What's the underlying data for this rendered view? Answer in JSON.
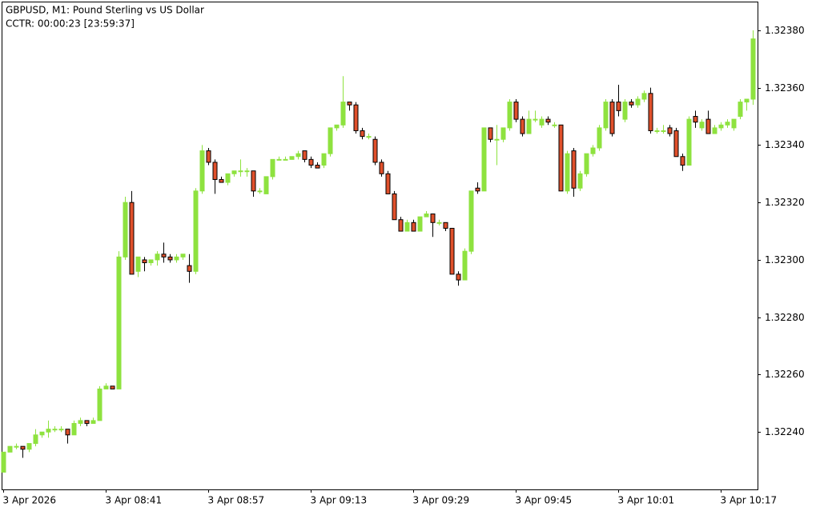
{
  "chart_data": {
    "type": "candlestick",
    "title": "GBPUSD, M1:  Pound Sterling vs US Dollar",
    "subtitle": "CCTR: 00:00:23 [23:59:37]",
    "up_color": "#8ee23f",
    "down_color": "#e0502b",
    "categories": [
      "3 Apr 2026",
      null,
      null,
      null,
      null,
      null,
      null,
      null,
      null,
      null,
      null,
      null,
      null,
      null,
      null,
      null,
      "3 Apr 08:41",
      null,
      null,
      null,
      null,
      null,
      null,
      null,
      null,
      null,
      null,
      null,
      null,
      null,
      null,
      null,
      "3 Apr 08:57",
      null,
      null,
      null,
      null,
      null,
      null,
      null,
      null,
      null,
      null,
      null,
      null,
      null,
      null,
      null,
      "3 Apr 09:13",
      null,
      null,
      null,
      null,
      null,
      null,
      null,
      null,
      null,
      null,
      null,
      null,
      null,
      null,
      null,
      "3 Apr 09:29",
      null,
      null,
      null,
      null,
      null,
      null,
      null,
      null,
      null,
      null,
      null,
      null,
      null,
      null,
      null,
      "3 Apr 09:45",
      null,
      null,
      null,
      null,
      null,
      null,
      null,
      null,
      null,
      null,
      null,
      null,
      null,
      null,
      null,
      "3 Apr 10:01",
      null,
      null,
      null,
      null,
      null,
      null,
      null,
      null,
      null,
      null,
      null,
      null,
      null,
      null,
      null,
      "3 Apr 10:17",
      null,
      null,
      null,
      null,
      null
    ],
    "open": [
      1.32226,
      1.32233,
      1.32235,
      1.32235,
      1.32234,
      1.32236,
      1.32239,
      1.3224,
      1.32241,
      1.32241,
      1.32241,
      1.32239,
      1.32243,
      1.32244,
      1.32243,
      1.32244,
      1.32255,
      1.32256,
      1.32255,
      1.32301,
      1.3232,
      1.32296,
      1.323,
      1.32299,
      1.323,
      1.32302,
      1.32301,
      1.323,
      1.32301,
      1.32298,
      1.32296,
      1.32324,
      1.32338,
      1.32334,
      1.32328,
      1.32327,
      1.3233,
      1.32331,
      1.32331,
      1.32331,
      1.32324,
      1.32323,
      1.32329,
      1.32335,
      1.32335,
      1.32335,
      1.32336,
      1.32338,
      1.32335,
      1.32333,
      1.32333,
      1.32337,
      1.32346,
      1.32347,
      1.32355,
      1.32354,
      1.32345,
      1.32343,
      1.32342,
      1.32334,
      1.3233,
      1.32323,
      1.32314,
      1.3231,
      1.32313,
      1.3231,
      1.32315,
      1.32316,
      1.32313,
      1.32313,
      1.32311,
      1.32295,
      1.32293,
      1.32303,
      1.32325,
      1.32324,
      1.32346,
      1.32342,
      1.32342,
      1.32346,
      1.32355,
      1.32349,
      1.32344,
      1.32349,
      1.32347,
      1.32349,
      1.32347,
      1.32347,
      1.32324,
      1.32338,
      1.32325,
      1.3233,
      1.32337,
      1.32339,
      1.32346,
      1.32355,
      1.32355,
      1.32349,
      1.32355,
      1.32354,
      1.32356,
      1.32358,
      1.32345,
      1.32345,
      1.32346,
      1.32345,
      1.32336,
      1.32333,
      1.3235,
      1.32346,
      1.32349,
      1.32344,
      1.32346,
      1.32347,
      1.32346,
      1.3235,
      1.32355,
      1.32356
    ],
    "high": [
      1.32233,
      1.32235,
      1.32236,
      1.32235,
      1.32236,
      1.32241,
      1.3224,
      1.32244,
      1.32242,
      1.32242,
      1.32241,
      1.32244,
      1.32245,
      1.32244,
      1.32245,
      1.32256,
      1.32257,
      1.32256,
      1.32303,
      1.32322,
      1.32324,
      1.32301,
      1.32301,
      1.323,
      1.32303,
      1.32306,
      1.32302,
      1.32302,
      1.32302,
      1.32302,
      1.32325,
      1.3234,
      1.32339,
      1.32335,
      1.32329,
      1.3233,
      1.32331,
      1.32335,
      1.32332,
      1.32331,
      1.32325,
      1.32329,
      1.32335,
      1.32336,
      1.32336,
      1.32336,
      1.32338,
      1.32338,
      1.32336,
      1.32334,
      1.32337,
      1.32346,
      1.32347,
      1.32364,
      1.32355,
      1.32355,
      1.32346,
      1.32344,
      1.32343,
      1.32335,
      1.32331,
      1.32324,
      1.32315,
      1.32314,
      1.32314,
      1.32315,
      1.32317,
      1.32316,
      1.32314,
      1.32313,
      1.32311,
      1.32296,
      1.32304,
      1.32324,
      1.32327,
      1.32346,
      1.32346,
      1.32347,
      1.32346,
      1.32356,
      1.32356,
      1.3235,
      1.32352,
      1.32352,
      1.3235,
      1.3235,
      1.32348,
      1.32347,
      1.32338,
      1.32339,
      1.32331,
      1.32337,
      1.3234,
      1.32347,
      1.32356,
      1.32356,
      1.32361,
      1.32356,
      1.32356,
      1.32357,
      1.32359,
      1.3236,
      1.32346,
      1.32347,
      1.32347,
      1.32346,
      1.32337,
      1.3235,
      1.32352,
      1.32349,
      1.32352,
      1.32347,
      1.32348,
      1.32349,
      1.32349,
      1.32356,
      1.32356,
      1.3238
    ],
    "low": [
      1.32226,
      1.32233,
      1.32234,
      1.32231,
      1.32233,
      1.32235,
      1.32238,
      1.32238,
      1.3224,
      1.3224,
      1.32236,
      1.32239,
      1.32242,
      1.32242,
      1.32243,
      1.32244,
      1.32255,
      1.32255,
      1.32255,
      1.323,
      1.32295,
      1.32294,
      1.32296,
      1.32298,
      1.32298,
      1.32299,
      1.32299,
      1.32299,
      1.323,
      1.32292,
      1.32295,
      1.32323,
      1.32333,
      1.32323,
      1.32327,
      1.32326,
      1.32329,
      1.32329,
      1.32329,
      1.32322,
      1.32323,
      1.32323,
      1.32328,
      1.32335,
      1.32335,
      1.32335,
      1.32335,
      1.32334,
      1.32332,
      1.32332,
      1.32332,
      1.32336,
      1.32345,
      1.32346,
      1.32352,
      1.32344,
      1.32342,
      1.32342,
      1.32333,
      1.32329,
      1.32323,
      1.32314,
      1.3231,
      1.3231,
      1.3231,
      1.3231,
      1.32315,
      1.32308,
      1.32312,
      1.3231,
      1.32295,
      1.32291,
      1.32293,
      1.32302,
      1.32323,
      1.32324,
      1.32341,
      1.32333,
      1.32341,
      1.32345,
      1.32348,
      1.32343,
      1.32344,
      1.32348,
      1.32346,
      1.32347,
      1.32346,
      1.32324,
      1.32323,
      1.32322,
      1.32324,
      1.32329,
      1.32336,
      1.32338,
      1.32345,
      1.32343,
      1.3235,
      1.32348,
      1.32353,
      1.32353,
      1.32355,
      1.32344,
      1.32344,
      1.32344,
      1.32343,
      1.32336,
      1.32331,
      1.32333,
      1.32346,
      1.32345,
      1.32344,
      1.32344,
      1.32345,
      1.32346,
      1.32345,
      1.32349,
      1.32352,
      1.32354
    ],
    "close": [
      1.32233,
      1.32235,
      1.32235,
      1.32234,
      1.32236,
      1.32239,
      1.3224,
      1.32241,
      1.32241,
      1.32241,
      1.32239,
      1.32243,
      1.32244,
      1.32243,
      1.32244,
      1.32255,
      1.32256,
      1.32255,
      1.32301,
      1.3232,
      1.32295,
      1.32301,
      1.32299,
      1.323,
      1.32302,
      1.32301,
      1.323,
      1.32301,
      1.32302,
      1.32296,
      1.32324,
      1.32338,
      1.32334,
      1.32328,
      1.32327,
      1.3233,
      1.32331,
      1.32331,
      1.32331,
      1.32324,
      1.32324,
      1.32329,
      1.32335,
      1.32335,
      1.32335,
      1.32336,
      1.32337,
      1.32335,
      1.32333,
      1.32332,
      1.32337,
      1.32346,
      1.32347,
      1.32355,
      1.32354,
      1.32345,
      1.32343,
      1.32343,
      1.32334,
      1.3233,
      1.32323,
      1.32314,
      1.3231,
      1.32313,
      1.3231,
      1.32315,
      1.32316,
      1.32313,
      1.32313,
      1.32311,
      1.32295,
      1.32293,
      1.32303,
      1.32324,
      1.32324,
      1.32346,
      1.32342,
      1.32342,
      1.32346,
      1.32355,
      1.32349,
      1.32344,
      1.32349,
      1.32349,
      1.32349,
      1.32348,
      1.32347,
      1.32324,
      1.32337,
      1.32325,
      1.3233,
      1.32337,
      1.32339,
      1.32346,
      1.32355,
      1.32344,
      1.32352,
      1.32355,
      1.32354,
      1.32356,
      1.32358,
      1.32345,
      1.32345,
      1.32345,
      1.32344,
      1.32336,
      1.32333,
      1.32349,
      1.32348,
      1.32348,
      1.32344,
      1.32346,
      1.32347,
      1.32348,
      1.32349,
      1.32355,
      1.32356,
      1.32377
    ],
    "ylim": [
      1.3222,
      1.3239
    ],
    "yticks": [
      {
        "value": 1.3224,
        "label": "1.32240"
      },
      {
        "value": 1.3226,
        "label": "1.32260"
      },
      {
        "value": 1.3228,
        "label": "1.32280"
      },
      {
        "value": 1.323,
        "label": "1.32300"
      },
      {
        "value": 1.3232,
        "label": "1.32320"
      },
      {
        "value": 1.3234,
        "label": "1.32340"
      },
      {
        "value": 1.3236,
        "label": "1.32360"
      },
      {
        "value": 1.3238,
        "label": "1.32380"
      }
    ],
    "grid": false
  }
}
